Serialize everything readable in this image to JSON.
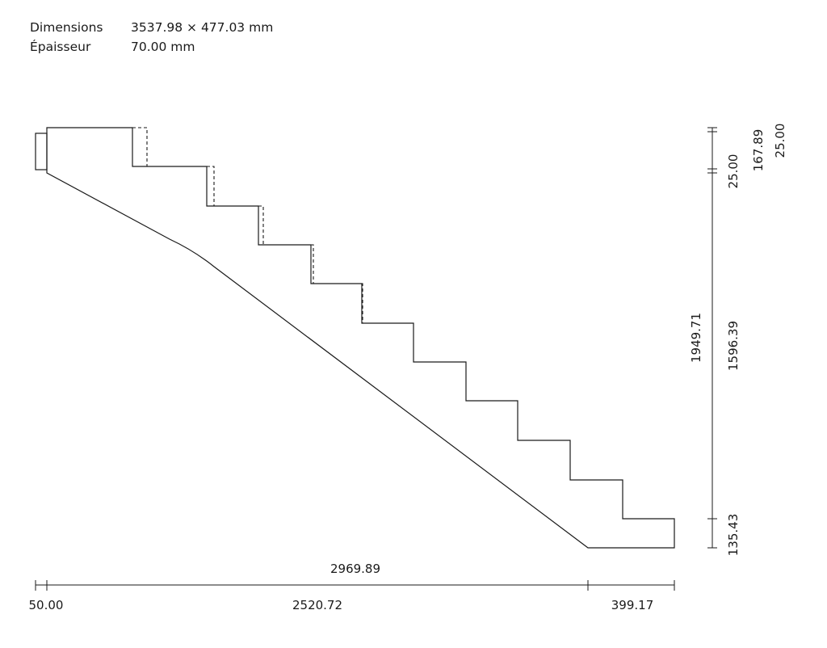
{
  "info": {
    "dimensions_label": "Dimensions",
    "dimensions_value": "3537.98 × 477.03 mm",
    "thickness_label": "Épaisseur",
    "thickness_value": "70.00 mm"
  },
  "dimensions": {
    "bottom_total": "2969.89",
    "bottom_left": "50.00",
    "bottom_middle": "2520.72",
    "bottom_right": "399.17",
    "right_total": "1949.71",
    "right_main": "1596.39",
    "right_top_gap": "25.00",
    "right_top_step": "167.89",
    "right_top_outer": "25.00",
    "right_bottom": "135.43"
  },
  "colors": {
    "line": "#1a1a1a",
    "background": "#ffffff"
  }
}
